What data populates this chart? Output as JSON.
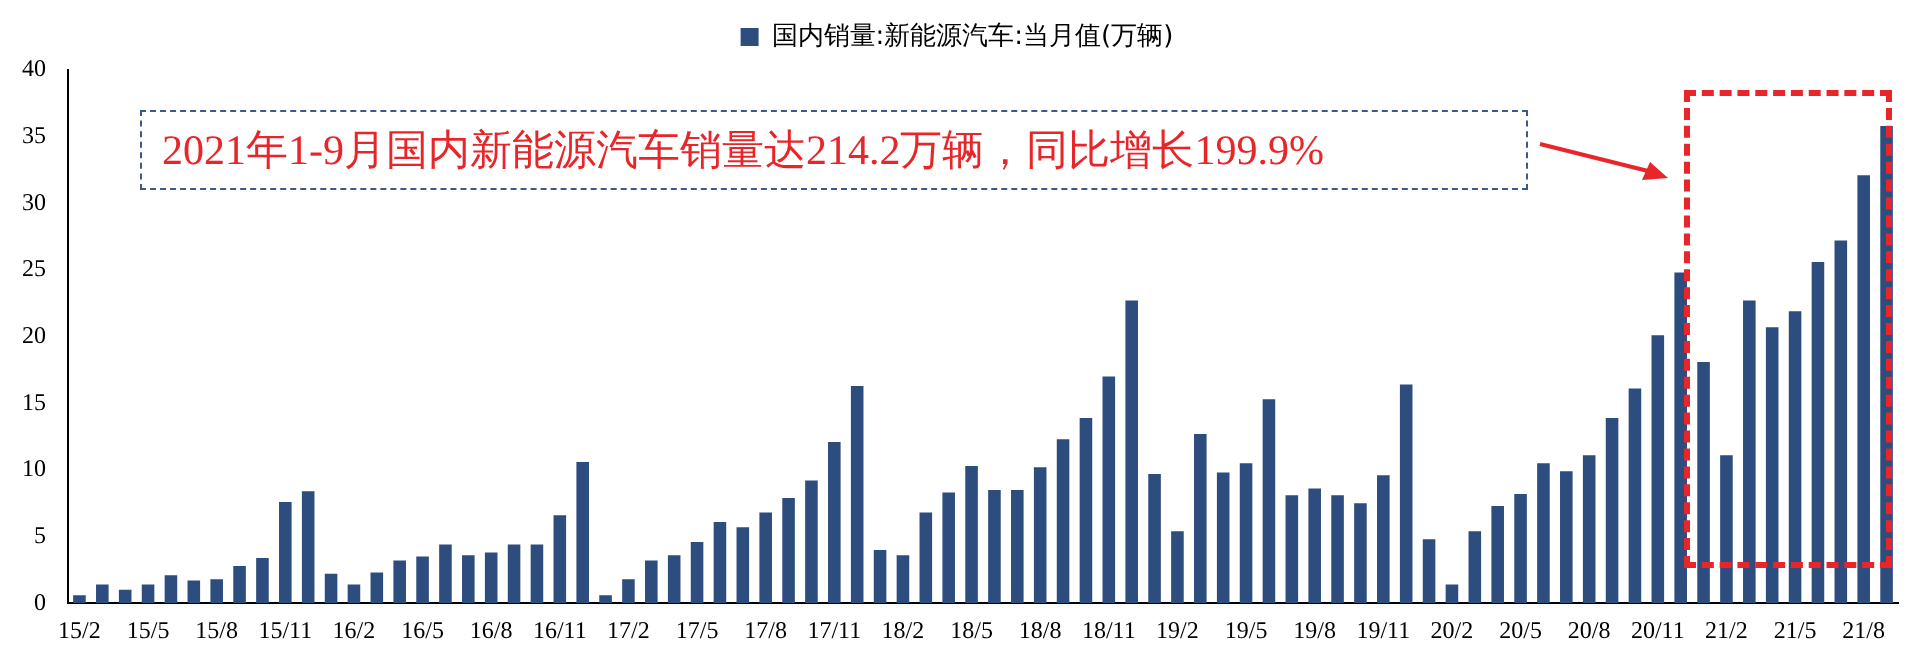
{
  "chart_data": {
    "type": "bar",
    "categories": [
      "15/2",
      null,
      null,
      "15/5",
      null,
      null,
      "15/8",
      null,
      null,
      "15/11",
      null,
      null,
      "16/2",
      null,
      null,
      "16/5",
      null,
      null,
      "16/8",
      null,
      null,
      "16/11",
      null,
      null,
      "17/2",
      null,
      null,
      "17/5",
      null,
      null,
      "17/8",
      null,
      null,
      "17/11",
      null,
      null,
      "18/2",
      null,
      null,
      "18/5",
      null,
      null,
      "18/8",
      null,
      null,
      "18/11",
      null,
      null,
      "19/2",
      null,
      null,
      "19/5",
      null,
      null,
      "19/8",
      null,
      null,
      "19/11",
      null,
      null,
      "20/2",
      null,
      null,
      "20/5",
      null,
      null,
      "20/8",
      null,
      null,
      "20/11",
      null,
      null,
      "21/2",
      null,
      null,
      "21/5",
      null,
      null,
      "21/8",
      null
    ],
    "series": [
      {
        "name": "国内销量:新能源汽车:当月值(万辆)",
        "color": "#2e4d7f",
        "values": [
          0.6,
          1.4,
          1.0,
          1.4,
          2.1,
          1.7,
          1.8,
          2.8,
          3.4,
          7.6,
          8.4,
          2.2,
          1.4,
          2.3,
          3.2,
          3.5,
          4.4,
          3.6,
          3.8,
          4.4,
          4.4,
          6.6,
          10.6,
          0.6,
          1.8,
          3.2,
          3.6,
          4.6,
          6.1,
          5.7,
          6.8,
          7.9,
          9.2,
          12.1,
          16.3,
          4.0,
          3.6,
          6.8,
          8.3,
          10.3,
          8.5,
          8.5,
          10.2,
          12.3,
          13.9,
          17.0,
          22.7,
          9.7,
          5.4,
          12.7,
          9.8,
          10.5,
          15.3,
          8.1,
          8.6,
          8.1,
          7.5,
          9.6,
          16.4,
          4.8,
          1.4,
          5.4,
          7.3,
          8.2,
          10.5,
          9.9,
          11.1,
          13.9,
          16.1,
          20.1,
          24.8,
          18.1,
          11.1,
          22.7,
          20.7,
          21.9,
          25.6,
          27.2,
          32.1,
          35.8
        ]
      }
    ],
    "ylim": [
      0,
      40
    ],
    "yticks": [
      0,
      5,
      10,
      15,
      20,
      25,
      30,
      35,
      40
    ],
    "grid": false,
    "legend": "top",
    "annotations": [
      "2021年1-9月国内新能源汽车销量达214.2万辆，同比增长199.9%"
    ]
  }
}
